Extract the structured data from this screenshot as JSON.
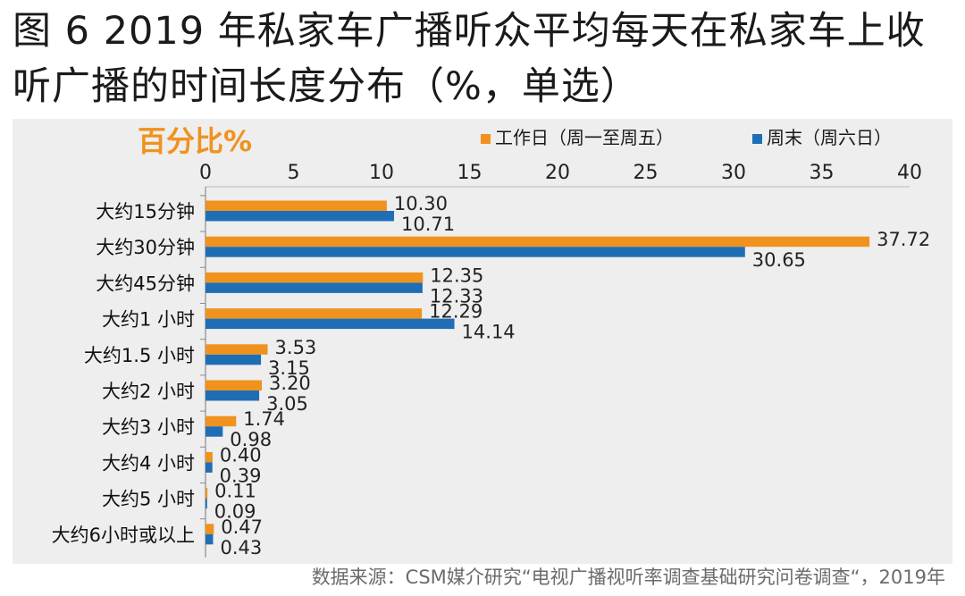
{
  "title_line1": "图 6 2019 年私家车广播听众平均每天在私家车上收",
  "title_line2": "听广播的时间长度分布（%，单选）",
  "source_note": "数据来源：CSM媒介研究“电视广播视听率调查基础研究问卷调查“，2019年",
  "chart_data": {
    "type": "bar",
    "orientation": "horizontal",
    "title": "百分比%",
    "categories": [
      "大约15分钟",
      "大约30分钟",
      "大约45分钟",
      "大约1 小时",
      "大约1.5 小时",
      "大约2 小时",
      "大约3 小时",
      "大约4 小时",
      "大约5 小时",
      "大约6小时或以上"
    ],
    "series": [
      {
        "name": "工作日（周一至周五）",
        "color": "#F0921E",
        "values": [
          10.3,
          37.72,
          12.35,
          12.29,
          3.53,
          3.2,
          1.74,
          0.4,
          0.11,
          0.47
        ],
        "labels": [
          "10.30",
          "37.72",
          "12.35",
          "12.29",
          "3.53",
          "3.20",
          "1.74",
          "0.40",
          "0.11",
          "0.47"
        ]
      },
      {
        "name": "周末（周六日）",
        "color": "#1F6EB5",
        "values": [
          10.71,
          30.65,
          12.33,
          14.14,
          3.15,
          3.05,
          0.98,
          0.39,
          0.09,
          0.43
        ],
        "labels": [
          "10.71",
          "30.65",
          "12.33",
          "14.14",
          "3.15",
          "3.05",
          "0.98",
          "0.39",
          "0.09",
          "0.43"
        ]
      }
    ],
    "xlim": [
      0,
      40
    ],
    "xticks": [
      "0",
      "5",
      "10",
      "15",
      "20",
      "25",
      "30",
      "35",
      "40"
    ],
    "axis_position": "top",
    "legend_position": "top-right",
    "grid": false,
    "title_color": "#F0921E"
  }
}
